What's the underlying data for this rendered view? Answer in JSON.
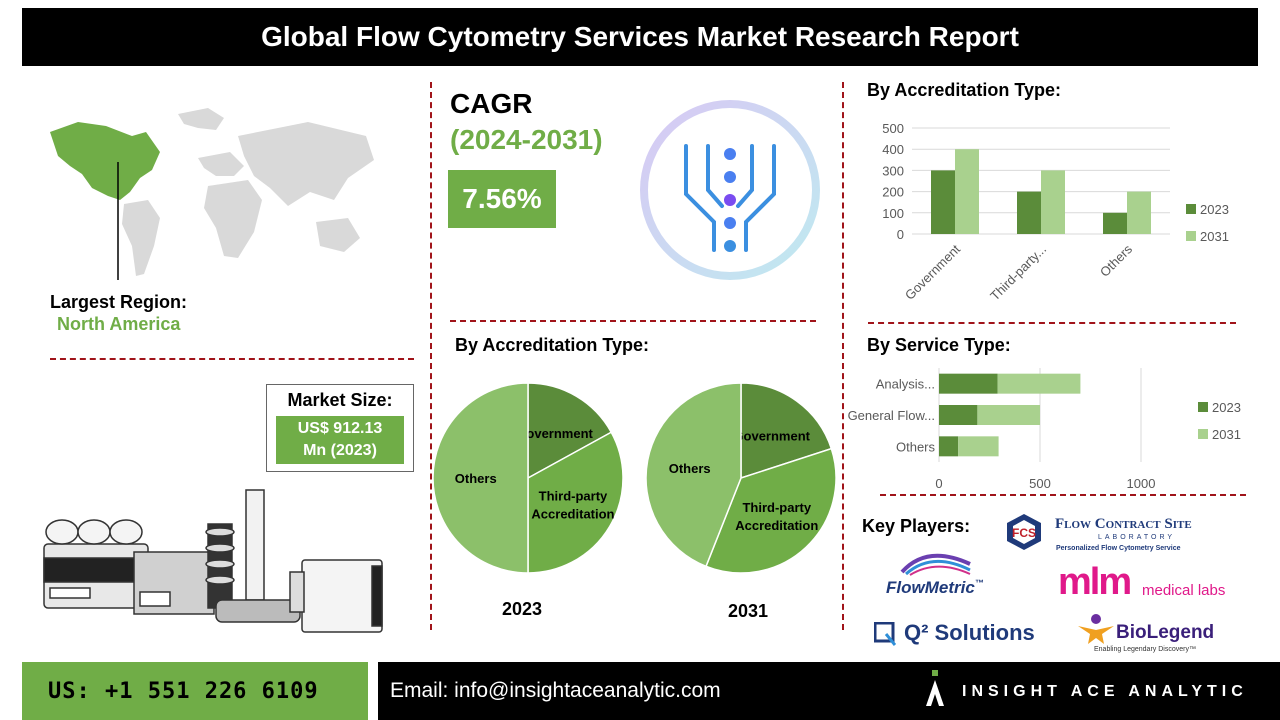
{
  "title": "Global Flow Cytometry Services Market Research Report",
  "largest_region": {
    "label": "Largest Region:",
    "value": "North America"
  },
  "market_size": {
    "label": "Market Size:",
    "line1": "US$ 912.13",
    "line2": "Mn (2023)"
  },
  "cagr": {
    "title": "CAGR",
    "period": "(2024-2031)",
    "value": "7.56%"
  },
  "section_titles": {
    "accreditation_bar": "By Accreditation Type:",
    "accreditation_pie": "By Accreditation Type:",
    "service": "By Service Type:",
    "key_players": "Key Players:"
  },
  "pie_years": {
    "left": "2023",
    "right": "2031"
  },
  "key_players": {
    "flow_contract_site": {
      "name": "Flow Contract Site",
      "sub": "LABORATORY",
      "tagline": "Personalized Flow Cytometry Service",
      "mark": "FCS"
    },
    "flowmetric": {
      "name": "FlowMetric",
      "tm": "™"
    },
    "mlm": {
      "mark": "mlm",
      "name": "medical labs"
    },
    "q2": {
      "name": "Q² Solutions"
    },
    "biolegend": {
      "name": "BioLegend",
      "tagline": "Enabling Legendary Discovery™"
    }
  },
  "footer": {
    "phone": "US: +1 551 226 6109",
    "email": "Email: info@insightaceanalytic.com",
    "brand": "INSIGHT ACE ANALYTIC"
  },
  "colors": {
    "accent": "#70ad47",
    "dark_green": "#5b8c3a",
    "light_green": "#a9d18e",
    "divider": "#a0141a"
  },
  "chart_data": [
    {
      "type": "bar",
      "title": "By Accreditation Type:",
      "categories": [
        "Government",
        "Third-party...",
        "Others"
      ],
      "series": [
        {
          "name": "2023",
          "values": [
            300,
            200,
            100
          ]
        },
        {
          "name": "2031",
          "values": [
            400,
            300,
            200
          ]
        }
      ],
      "yticks": [
        "0",
        "100",
        "200",
        "300",
        "400",
        "500"
      ],
      "ylim": [
        0,
        500
      ],
      "grid": true,
      "legend": "right"
    },
    {
      "type": "bar",
      "orientation": "horizontal-stacked",
      "title": "By Service Type:",
      "categories": [
        "Analysis...",
        "General Flow...",
        "Others"
      ],
      "series": [
        {
          "name": "2023",
          "values": [
            290,
            190,
            95
          ]
        },
        {
          "name": "2031",
          "values": [
            410,
            310,
            200
          ]
        }
      ],
      "xticks": [
        "0",
        "500",
        "1000"
      ],
      "xlim": [
        0,
        1000
      ],
      "grid": true,
      "legend": "right"
    },
    {
      "type": "pie",
      "title": "2023",
      "slices": [
        {
          "label": "Government",
          "value": 17
        },
        {
          "label": "Third-party Accreditation",
          "value": 33
        },
        {
          "label": "Others",
          "value": 50
        }
      ]
    },
    {
      "type": "pie",
      "title": "2031",
      "slices": [
        {
          "label": "Government",
          "value": 20
        },
        {
          "label": "Third-party Accreditation",
          "value": 36
        },
        {
          "label": "Others",
          "value": 44
        }
      ]
    }
  ]
}
